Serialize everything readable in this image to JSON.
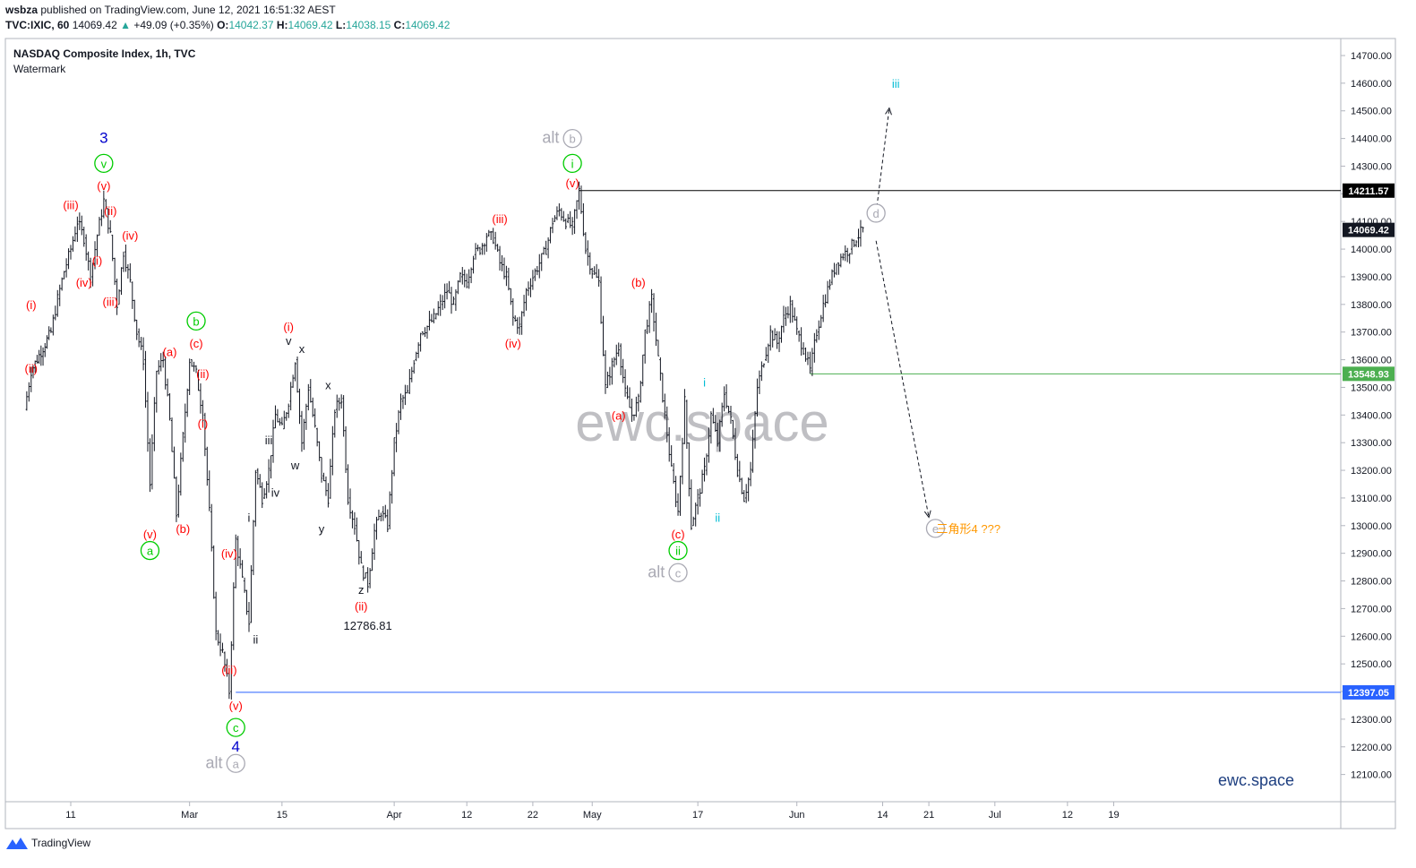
{
  "header": {
    "publisher": "wsbza",
    "published_text": "published on TradingView.com, June 12, 2021 16:51:32 AEST",
    "symbol": "TVC:IXIC, 60",
    "last": "14069.42",
    "change": "+49.09 (+0.35%)",
    "open_label": "O:",
    "open": "14042.37",
    "high_label": "H:",
    "high": "14069.42",
    "low_label": "L:",
    "low": "14038.15",
    "close_label": "C:",
    "close": "14069.42"
  },
  "chart_data": {
    "type": "candlestick",
    "title": "NASDAQ Composite Index, 1h, TVC",
    "subtitle": "Watermark",
    "watermark": "ewc.space",
    "brand": "ewc.space",
    "ylim": [
      12020,
      14760
    ],
    "y_ticks": [
      "14700.00",
      "14600.00",
      "14500.00",
      "14400.00",
      "14300.00",
      "14200.00",
      "14100.00",
      "14000.00",
      "13900.00",
      "13800.00",
      "13700.00",
      "13600.00",
      "13500.00",
      "13400.00",
      "13300.00",
      "13200.00",
      "13100.00",
      "13000.00",
      "12900.00",
      "12800.00",
      "12700.00",
      "12600.00",
      "12500.00",
      "12400.00",
      "12300.00",
      "12200.00",
      "12100.00"
    ],
    "x_ticks": [
      "11",
      "Mar",
      "15",
      "Apr",
      "12",
      "22",
      "May",
      "17",
      "Jun",
      "14",
      "21",
      "Jul",
      "12",
      "19"
    ],
    "x_tick_dates": [
      "2021-02-11",
      "2021-03-01",
      "2021-03-15",
      "2021-04-01",
      "2021-04-12",
      "2021-04-22",
      "2021-05-01",
      "2021-05-17",
      "2021-06-01",
      "2021-06-14",
      "2021-06-21",
      "2021-07-01",
      "2021-07-12",
      "2021-07-19"
    ],
    "price_path": [
      [
        "2021-02-04",
        13420
      ],
      [
        "2021-02-05",
        13560
      ],
      [
        "2021-02-08",
        13700
      ],
      [
        "2021-02-09",
        13820
      ],
      [
        "2021-02-10",
        13920
      ],
      [
        "2021-02-11",
        14000
      ],
      [
        "2021-02-12",
        14100
      ],
      [
        "2021-02-13",
        14040
      ],
      [
        "2021-02-14",
        13900
      ],
      [
        "2021-02-15",
        14050
      ],
      [
        "2021-02-16",
        14175
      ],
      [
        "2021-02-17",
        14050
      ],
      [
        "2021-02-18",
        13800
      ],
      [
        "2021-02-19",
        13990
      ],
      [
        "2021-02-20",
        13880
      ],
      [
        "2021-02-21",
        13700
      ],
      [
        "2021-02-22",
        13600
      ],
      [
        "2021-02-23",
        13150
      ],
      [
        "2021-02-24",
        13560
      ],
      [
        "2021-02-25",
        13600
      ],
      [
        "2021-02-26",
        13380
      ],
      [
        "2021-02-27",
        13040
      ],
      [
        "2021-02-28",
        13320
      ],
      [
        "2021-03-01",
        13600
      ],
      [
        "2021-03-02",
        13550
      ],
      [
        "2021-03-03",
        13400
      ],
      [
        "2021-03-04",
        13050
      ],
      [
        "2021-03-05",
        12610
      ],
      [
        "2021-03-06",
        12540
      ],
      [
        "2021-03-07",
        12400
      ],
      [
        "2021-03-08",
        12950
      ],
      [
        "2021-03-09",
        12800
      ],
      [
        "2021-03-10",
        12650
      ],
      [
        "2021-03-11",
        13200
      ],
      [
        "2021-03-12",
        13100
      ],
      [
        "2021-03-13",
        13200
      ],
      [
        "2021-03-14",
        13400
      ],
      [
        "2021-03-15",
        13350
      ],
      [
        "2021-03-16",
        13450
      ],
      [
        "2021-03-17",
        13600
      ],
      [
        "2021-03-18",
        13300
      ],
      [
        "2021-03-19",
        13500
      ],
      [
        "2021-03-20",
        13350
      ],
      [
        "2021-03-21",
        13180
      ],
      [
        "2021-03-22",
        13100
      ],
      [
        "2021-03-23",
        13420
      ],
      [
        "2021-03-24",
        13460
      ],
      [
        "2021-03-25",
        13100
      ],
      [
        "2021-03-26",
        13000
      ],
      [
        "2021-03-27",
        12850
      ],
      [
        "2021-03-28",
        12790
      ],
      [
        "2021-03-29",
        12980
      ],
      [
        "2021-03-30",
        13050
      ],
      [
        "2021-03-31",
        13000
      ],
      [
        "2021-04-01",
        13300
      ],
      [
        "2021-04-02",
        13450
      ],
      [
        "2021-04-03",
        13480
      ],
      [
        "2021-04-04",
        13600
      ],
      [
        "2021-04-05",
        13700
      ],
      [
        "2021-04-06",
        13720
      ],
      [
        "2021-04-07",
        13750
      ],
      [
        "2021-04-08",
        13800
      ],
      [
        "2021-04-09",
        13850
      ],
      [
        "2021-04-10",
        13800
      ],
      [
        "2021-04-11",
        13900
      ],
      [
        "2021-04-12",
        13880
      ],
      [
        "2021-04-13",
        13980
      ],
      [
        "2021-04-14",
        14000
      ],
      [
        "2021-04-15",
        14050
      ],
      [
        "2021-04-16",
        14040
      ],
      [
        "2021-04-17",
        13950
      ],
      [
        "2021-04-18",
        13900
      ],
      [
        "2021-04-19",
        13750
      ],
      [
        "2021-04-20",
        13720
      ],
      [
        "2021-04-21",
        13850
      ],
      [
        "2021-04-22",
        13900
      ],
      [
        "2021-04-23",
        13950
      ],
      [
        "2021-04-24",
        14000
      ],
      [
        "2021-04-25",
        14100
      ],
      [
        "2021-04-26",
        14140
      ],
      [
        "2021-04-27",
        14100
      ],
      [
        "2021-04-28",
        14080
      ],
      [
        "2021-04-29",
        14211.57
      ],
      [
        "2021-04-30",
        14000
      ],
      [
        "2021-05-01",
        13920
      ],
      [
        "2021-05-02",
        13880
      ],
      [
        "2021-05-03",
        13500
      ],
      [
        "2021-05-04",
        13580
      ],
      [
        "2021-05-05",
        13650
      ],
      [
        "2021-05-06",
        13480
      ],
      [
        "2021-05-07",
        13400
      ],
      [
        "2021-05-08",
        13450
      ],
      [
        "2021-05-09",
        13700
      ],
      [
        "2021-05-10",
        13820
      ],
      [
        "2021-05-11",
        13600
      ],
      [
        "2021-05-12",
        13400
      ],
      [
        "2021-05-13",
        13200
      ],
      [
        "2021-05-14",
        13050
      ],
      [
        "2021-05-15",
        13450
      ],
      [
        "2021-05-16",
        13000
      ],
      [
        "2021-05-17",
        13100
      ],
      [
        "2021-05-18",
        13200
      ],
      [
        "2021-05-19",
        13400
      ],
      [
        "2021-05-20",
        13300
      ],
      [
        "2021-05-21",
        13480
      ],
      [
        "2021-05-22",
        13380
      ],
      [
        "2021-05-23",
        13200
      ],
      [
        "2021-05-24",
        13100
      ],
      [
        "2021-05-25",
        13200
      ],
      [
        "2021-05-26",
        13500
      ],
      [
        "2021-05-27",
        13600
      ],
      [
        "2021-05-28",
        13700
      ],
      [
        "2021-05-29",
        13660
      ],
      [
        "2021-05-30",
        13750
      ],
      [
        "2021-05-31",
        13800
      ],
      [
        "2021-06-01",
        13700
      ],
      [
        "2021-06-02",
        13640
      ],
      [
        "2021-06-03",
        13560
      ],
      [
        "2021-06-04",
        13700
      ],
      [
        "2021-06-05",
        13800
      ],
      [
        "2021-06-06",
        13880
      ],
      [
        "2021-06-07",
        13950
      ],
      [
        "2021-06-08",
        13980
      ],
      [
        "2021-06-09",
        14000
      ],
      [
        "2021-06-10",
        14040
      ],
      [
        "2021-06-11",
        14069.42
      ]
    ],
    "horizontal_lines": [
      {
        "value": 14211.57,
        "label": "14211.57",
        "color": "#000000",
        "from": "2021-04-29"
      },
      {
        "value": 14069.42,
        "label": "14069.42",
        "color": "#131722",
        "from": null
      },
      {
        "value": 13548.93,
        "label": "13548.93",
        "color": "#4caf50",
        "from": "2021-06-03"
      },
      {
        "value": 12397.05,
        "label": "12397.05",
        "color": "#2962ff",
        "from": "2021-03-08"
      }
    ],
    "projections": [
      {
        "from": [
          "2021-06-13",
          14130
        ],
        "to": [
          "2021-06-15",
          14510
        ],
        "label": "iii"
      },
      {
        "from": [
          "2021-06-13",
          14030
        ],
        "to": [
          "2021-06-21",
          13030
        ],
        "label": "e"
      }
    ],
    "annotations": [
      {
        "text": "3",
        "x": "2021-02-16",
        "y": 14400,
        "color": "#0000cc",
        "style": "big"
      },
      {
        "text": "v",
        "x": "2021-02-16",
        "y": 14310,
        "color": "#00cc00",
        "style": "circle"
      },
      {
        "text": "(v)",
        "x": "2021-02-16",
        "y": 14230,
        "color": "#ff0000",
        "style": "plain"
      },
      {
        "text": "(iii)",
        "x": "2021-02-11",
        "y": 14160,
        "color": "#ff0000",
        "style": "plain"
      },
      {
        "text": "(ii)",
        "x": "2021-02-17",
        "y": 14140,
        "color": "#ff0000",
        "style": "plain"
      },
      {
        "text": "(iv)",
        "x": "2021-02-20",
        "y": 14050,
        "color": "#ff0000",
        "style": "plain"
      },
      {
        "text": "(i)",
        "x": "2021-02-15",
        "y": 13960,
        "color": "#ff0000",
        "style": "plain"
      },
      {
        "text": "(iv)",
        "x": "2021-02-13",
        "y": 13880,
        "color": "#ff0000",
        "style": "plain"
      },
      {
        "text": "(iii)",
        "x": "2021-02-17",
        "y": 13810,
        "color": "#ff0000",
        "style": "plain"
      },
      {
        "text": "(i)",
        "x": "2021-02-05",
        "y": 13800,
        "color": "#ff0000",
        "style": "plain"
      },
      {
        "text": "(ii)",
        "x": "2021-02-05",
        "y": 13570,
        "color": "#ff0000",
        "style": "plain"
      },
      {
        "text": "(a)",
        "x": "2021-02-26",
        "y": 13630,
        "color": "#ff0000",
        "style": "plain"
      },
      {
        "text": "b",
        "x": "2021-03-02",
        "y": 13740,
        "color": "#00cc00",
        "style": "circle"
      },
      {
        "text": "(c)",
        "x": "2021-03-02",
        "y": 13660,
        "color": "#ff0000",
        "style": "plain"
      },
      {
        "text": "(ii)",
        "x": "2021-03-03",
        "y": 13550,
        "color": "#ff0000",
        "style": "plain"
      },
      {
        "text": "(i)",
        "x": "2021-03-03",
        "y": 13370,
        "color": "#ff0000",
        "style": "plain"
      },
      {
        "text": "(v)",
        "x": "2021-02-23",
        "y": 12970,
        "color": "#ff0000",
        "style": "plain"
      },
      {
        "text": "a",
        "x": "2021-02-23",
        "y": 12910,
        "color": "#00cc00",
        "style": "circle"
      },
      {
        "text": "(b)",
        "x": "2021-02-28",
        "y": 12990,
        "color": "#ff0000",
        "style": "plain"
      },
      {
        "text": "(iv)",
        "x": "2021-03-07",
        "y": 12900,
        "color": "#ff0000",
        "style": "plain"
      },
      {
        "text": "(iii)",
        "x": "2021-03-07",
        "y": 12480,
        "color": "#ff0000",
        "style": "plain"
      },
      {
        "text": "(v)",
        "x": "2021-03-08",
        "y": 12350,
        "color": "#ff0000",
        "style": "plain"
      },
      {
        "text": "c",
        "x": "2021-03-08",
        "y": 12270,
        "color": "#00cc00",
        "style": "circle"
      },
      {
        "text": "4",
        "x": "2021-03-08",
        "y": 12200,
        "color": "#0000cc",
        "style": "big"
      },
      {
        "text": "alt",
        "x": "2021-03-06",
        "y": 12140,
        "color": "#a9a9b3",
        "style": "alt"
      },
      {
        "text": "a",
        "x": "2021-03-08",
        "y": 12140,
        "color": "#a9a9b3",
        "style": "circle"
      },
      {
        "text": "i",
        "x": "2021-03-10",
        "y": 13030,
        "color": "#131722",
        "style": "plain"
      },
      {
        "text": "ii",
        "x": "2021-03-11",
        "y": 12590,
        "color": "#131722",
        "style": "plain"
      },
      {
        "text": "iii",
        "x": "2021-03-13",
        "y": 13310,
        "color": "#131722",
        "style": "plain"
      },
      {
        "text": "iv",
        "x": "2021-03-14",
        "y": 13120,
        "color": "#131722",
        "style": "plain"
      },
      {
        "text": "(i)",
        "x": "2021-03-16",
        "y": 13720,
        "color": "#ff0000",
        "style": "plain"
      },
      {
        "text": "v",
        "x": "2021-03-16",
        "y": 13670,
        "color": "#131722",
        "style": "plain"
      },
      {
        "text": "x",
        "x": "2021-03-18",
        "y": 13640,
        "color": "#131722",
        "style": "plain"
      },
      {
        "text": "w",
        "x": "2021-03-17",
        "y": 13220,
        "color": "#131722",
        "style": "plain"
      },
      {
        "text": "x",
        "x": "2021-03-22",
        "y": 13510,
        "color": "#131722",
        "style": "plain"
      },
      {
        "text": "y",
        "x": "2021-03-21",
        "y": 12990,
        "color": "#131722",
        "style": "plain"
      },
      {
        "text": "z",
        "x": "2021-03-27",
        "y": 12770,
        "color": "#131722",
        "style": "plain"
      },
      {
        "text": "(ii)",
        "x": "2021-03-27",
        "y": 12710,
        "color": "#ff0000",
        "style": "plain"
      },
      {
        "text": "12786.81",
        "x": "2021-03-28",
        "y": 12640,
        "color": "#131722",
        "style": "plain"
      },
      {
        "text": "(iii)",
        "x": "2021-04-17",
        "y": 14110,
        "color": "#ff0000",
        "style": "plain"
      },
      {
        "text": "(iv)",
        "x": "2021-04-19",
        "y": 13660,
        "color": "#ff0000",
        "style": "plain"
      },
      {
        "text": "alt",
        "x": "2021-04-26",
        "y": 14400,
        "color": "#a9a9b3",
        "style": "alt"
      },
      {
        "text": "b",
        "x": "2021-04-28",
        "y": 14400,
        "color": "#a9a9b3",
        "style": "circle"
      },
      {
        "text": "i",
        "x": "2021-04-28",
        "y": 14310,
        "color": "#00cc00",
        "style": "circle"
      },
      {
        "text": "(v)",
        "x": "2021-04-28",
        "y": 14240,
        "color": "#ff0000",
        "style": "plain"
      },
      {
        "text": "(b)",
        "x": "2021-05-08",
        "y": 13880,
        "color": "#ff0000",
        "style": "plain"
      },
      {
        "text": "(a)",
        "x": "2021-05-05",
        "y": 13400,
        "color": "#ff0000",
        "style": "plain"
      },
      {
        "text": "(c)",
        "x": "2021-05-14",
        "y": 12970,
        "color": "#ff0000",
        "style": "plain"
      },
      {
        "text": "ii",
        "x": "2021-05-14",
        "y": 12910,
        "color": "#00cc00",
        "style": "circle"
      },
      {
        "text": "alt",
        "x": "2021-05-12",
        "y": 12830,
        "color": "#a9a9b3",
        "style": "alt"
      },
      {
        "text": "c",
        "x": "2021-05-14",
        "y": 12830,
        "color": "#a9a9b3",
        "style": "circle"
      },
      {
        "text": "i",
        "x": "2021-05-18",
        "y": 13520,
        "color": "#00bcd4",
        "style": "plain"
      },
      {
        "text": "ii",
        "x": "2021-05-20",
        "y": 13030,
        "color": "#00bcd4",
        "style": "plain"
      },
      {
        "text": "d",
        "x": "2021-06-13",
        "y": 14130,
        "color": "#a9a9b3",
        "style": "circle"
      },
      {
        "text": "iii",
        "x": "2021-06-16",
        "y": 14600,
        "color": "#00bcd4",
        "style": "plain"
      },
      {
        "text": "e",
        "x": "2021-06-22",
        "y": 12990,
        "color": "#a9a9b3",
        "style": "circle"
      },
      {
        "text": "三角形4 ???",
        "x": "2021-06-27",
        "y": 12990,
        "color": "#ff9800",
        "style": "plain"
      }
    ]
  },
  "footer": {
    "brand": "TradingView"
  },
  "colors": {
    "axis": "#b2b5be",
    "text": "#131722",
    "watermark": "#b4b4b8",
    "brand": "#1e3f80"
  }
}
